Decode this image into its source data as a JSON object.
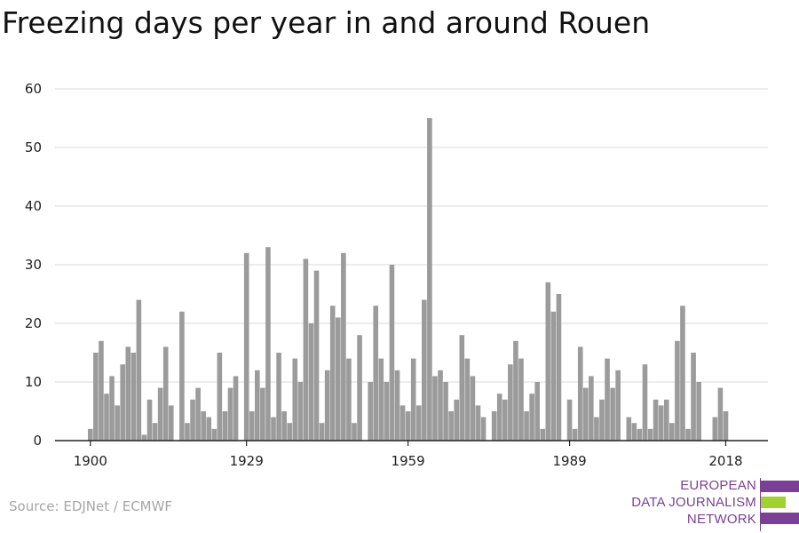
{
  "title": "Freezing days per year in and around Rouen",
  "source": "Source: EDJNet / ECMWF",
  "logo": {
    "line1": "EUROPEAN",
    "line2": "DATA JOURNALISM",
    "line3": "NETWORK",
    "purple": "#7b3f98",
    "green": "#9fd22d"
  },
  "colors": {
    "bar": "#9b9b9b",
    "grid": "#d9d9d9",
    "axis": "#222222",
    "text": "#222222"
  },
  "chart_data": {
    "type": "bar",
    "title": "Freezing days per year in and around Rouen",
    "xlabel": "",
    "ylabel": "",
    "ylim": [
      0,
      60
    ],
    "y_ticks": [
      0,
      10,
      20,
      30,
      40,
      50,
      60
    ],
    "x_ticks": [
      1900,
      1929,
      1959,
      1989,
      2018
    ],
    "grid": true,
    "years": [
      1900,
      1901,
      1902,
      1903,
      1904,
      1905,
      1906,
      1907,
      1908,
      1909,
      1910,
      1911,
      1912,
      1913,
      1914,
      1915,
      1916,
      1917,
      1918,
      1919,
      1920,
      1921,
      1922,
      1923,
      1924,
      1925,
      1926,
      1927,
      1928,
      1929,
      1930,
      1931,
      1932,
      1933,
      1934,
      1935,
      1936,
      1937,
      1938,
      1939,
      1940,
      1941,
      1942,
      1943,
      1944,
      1945,
      1946,
      1947,
      1948,
      1949,
      1950,
      1951,
      1952,
      1953,
      1954,
      1955,
      1956,
      1957,
      1958,
      1959,
      1960,
      1961,
      1962,
      1963,
      1964,
      1965,
      1966,
      1967,
      1968,
      1969,
      1970,
      1971,
      1972,
      1973,
      1974,
      1975,
      1976,
      1977,
      1978,
      1979,
      1980,
      1981,
      1982,
      1983,
      1984,
      1985,
      1986,
      1987,
      1988,
      1989,
      1990,
      1991,
      1992,
      1993,
      1994,
      1995,
      1996,
      1997,
      1998,
      1999,
      2000,
      2001,
      2002,
      2003,
      2004,
      2005,
      2006,
      2007,
      2008,
      2009,
      2010,
      2011,
      2012,
      2013,
      2014,
      2015,
      2016,
      2017,
      2018
    ],
    "values": [
      2,
      15,
      17,
      8,
      11,
      6,
      13,
      16,
      15,
      24,
      1,
      7,
      3,
      9,
      16,
      6,
      0,
      22,
      3,
      7,
      9,
      5,
      4,
      2,
      15,
      5,
      9,
      11,
      0,
      32,
      5,
      12,
      9,
      33,
      4,
      15,
      5,
      3,
      14,
      10,
      31,
      20,
      29,
      3,
      12,
      23,
      21,
      32,
      14,
      3,
      18,
      0,
      10,
      23,
      14,
      10,
      30,
      12,
      6,
      5,
      14,
      6,
      24,
      55,
      11,
      12,
      10,
      5,
      7,
      18,
      14,
      11,
      6,
      4,
      0,
      5,
      8,
      7,
      13,
      17,
      14,
      5,
      8,
      10,
      2,
      27,
      22,
      25,
      0,
      7,
      2,
      16,
      9,
      11,
      4,
      7,
      14,
      9,
      12,
      0,
      4,
      3,
      2,
      13,
      2,
      7,
      6,
      7,
      3,
      17,
      23,
      2,
      15,
      10,
      0,
      0,
      4,
      9,
      5
    ]
  }
}
